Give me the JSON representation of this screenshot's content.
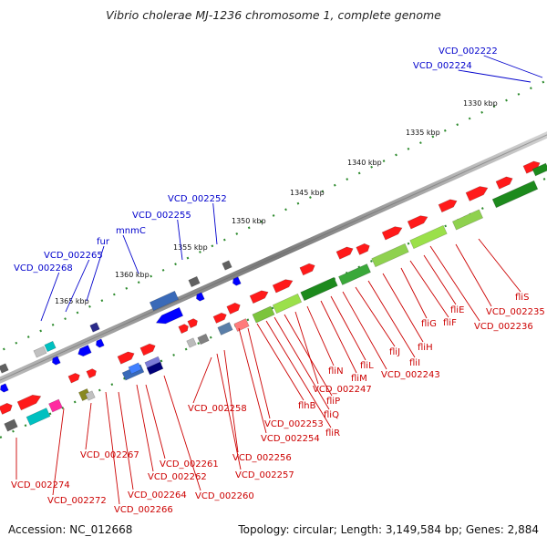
{
  "title": "Vibrio cholerae MJ-1236 chromosome 1, complete genome",
  "accession_label": "Accession: NC_012668",
  "topology_label": "Topology: circular; Length: 3,149,584 bp; Genes: 2,884",
  "colors": {
    "forward_gene": "#ff0000",
    "reverse_gene": "#0000ff",
    "upper_label": "#0000cc",
    "lower_label": "#cc0000",
    "backbone": "#8a8a8a",
    "ticks": "#2e8b2e"
  },
  "scale_labels": [
    "1330 kbp",
    "1335 kbp",
    "1340 kbp",
    "1345 kbp",
    "1350 kbp",
    "1355 kbp",
    "1360 kbp",
    "1365 kbp"
  ],
  "upper_gene_labels": [
    "VCD_002222",
    "VCD_002224",
    "VCD_002252",
    "VCD_002255",
    "mnmC",
    "fur",
    "VCD_002265",
    "VCD_002268"
  ],
  "lower_gene_labels": [
    "fliS",
    "VCD_002235",
    "VCD_002236",
    "fliE",
    "fliF",
    "fliG",
    "fliH",
    "fliI",
    "fliJ",
    "VCD_002243",
    "fliL",
    "fliM",
    "fliN",
    "VCD_002247",
    "fliP",
    "fliQ",
    "fliR",
    "flhB",
    "VCD_002253",
    "VCD_002254",
    "VCD_002258",
    "VCD_002256",
    "VCD_002257",
    "VCD_002260",
    "VCD_002261",
    "VCD_002262",
    "VCD_002264",
    "VCD_002266",
    "VCD_002267",
    "VCD_002272",
    "VCD_002274"
  ]
}
